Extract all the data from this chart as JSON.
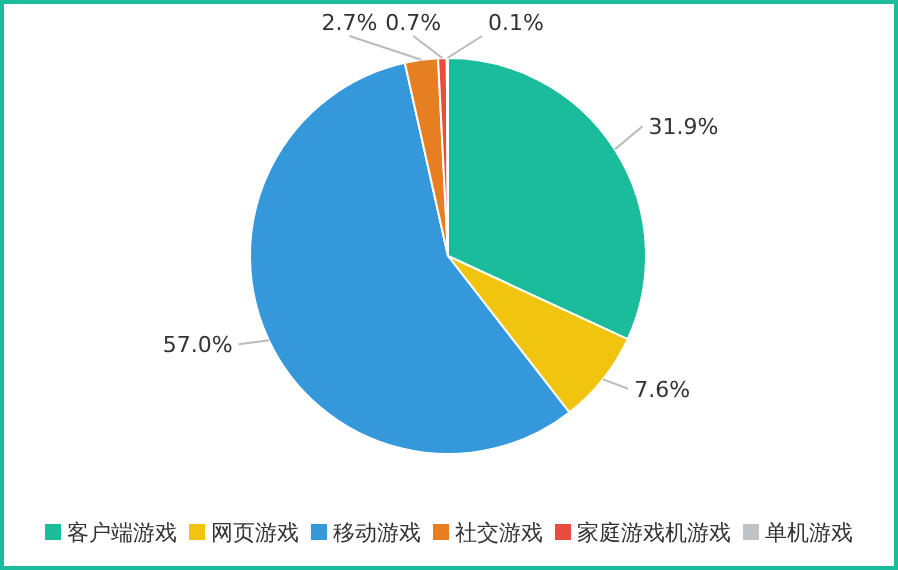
{
  "chart_data": {
    "type": "pie",
    "categories": [
      "客户端游戏",
      "网页游戏",
      "移动游戏",
      "社交游戏",
      "家庭游戏机游戏",
      "单机游戏"
    ],
    "values": [
      31.9,
      7.6,
      57.0,
      2.7,
      0.7,
      0.1
    ],
    "value_labels": [
      "31.9%",
      "7.6%",
      "57.0%",
      "2.7%",
      "0.7%",
      "0.1%"
    ],
    "colors": [
      "#1abc9c",
      "#f1c40f",
      "#3498db",
      "#e67e22",
      "#e74c3c",
      "#bdc3c7"
    ],
    "legend": "bottom"
  }
}
